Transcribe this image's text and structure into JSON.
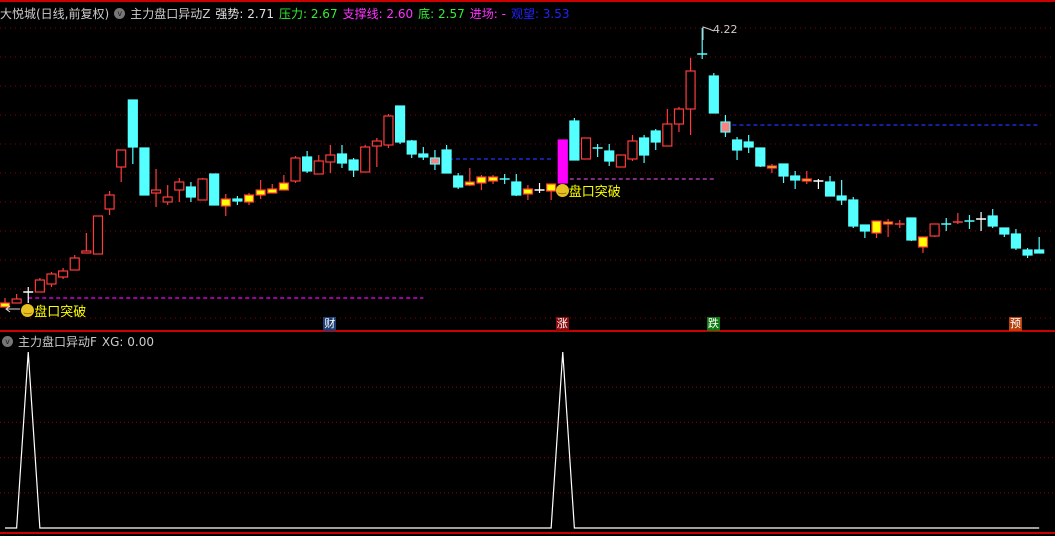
{
  "header": {
    "stock": "大悦城(日线,前复权)",
    "indicator": "主力盘口异动Z",
    "items": [
      {
        "label": "强势: 2.71",
        "color": "#e0e0e0"
      },
      {
        "label": "压力: 2.67",
        "color": "#33ee33"
      },
      {
        "label": "支撑线: 2.60",
        "color": "#ff33ff"
      },
      {
        "label": "底: 2.57",
        "color": "#33ee33"
      },
      {
        "label": "进场: -",
        "color": "#ff33ff"
      },
      {
        "label": "观望: 3.53",
        "color": "#2222ff"
      }
    ]
  },
  "subpanel": {
    "indicator": "主力盘口异动F",
    "value_label": "XG: 0.00"
  },
  "signals": [
    {
      "label": "盘口突破",
      "candle": 2
    },
    {
      "label": "盘口突破",
      "candle": 48
    }
  ],
  "high_label": "4.22",
  "markers": [
    {
      "label": "财",
      "candle": 28,
      "color": "#1d3f73"
    },
    {
      "label": "涨",
      "candle": 48,
      "color": "#8a0c0c"
    },
    {
      "label": "跌",
      "candle": 61,
      "color": "#0e7a12"
    },
    {
      "label": "预",
      "candle": 87,
      "color": "#b8400a"
    }
  ],
  "colors": {
    "up": "#ff3b3b",
    "down": "#54ffff",
    "yellow": "#ffff00",
    "magenta": "#ff00ff",
    "pink": "#ff8080",
    "doji": "#ffffff",
    "grid": "#8a0000",
    "border": "#cc0000"
  },
  "chart_data": [
    {
      "type": "candlestick",
      "title": "大悦城(日线,前复权)",
      "ylim": [
        1.4,
        4.3
      ],
      "grid": true,
      "style_codes": {
        "u": "up",
        "d": "down",
        "y": "yellow",
        "m": "magenta",
        "p": "pink",
        "w": "doji"
      },
      "candles": [
        [
          1.43,
          1.52,
          1.43,
          1.47,
          "y"
        ],
        [
          1.47,
          1.56,
          1.47,
          1.51,
          "u"
        ],
        [
          1.58,
          1.63,
          1.47,
          1.58,
          "w"
        ],
        [
          1.58,
          1.72,
          1.58,
          1.7,
          "u"
        ],
        [
          1.66,
          1.78,
          1.63,
          1.76,
          "u"
        ],
        [
          1.73,
          1.82,
          1.71,
          1.79,
          "u"
        ],
        [
          1.8,
          1.95,
          1.8,
          1.92,
          "u"
        ],
        [
          1.97,
          2.17,
          1.97,
          1.99,
          "u"
        ],
        [
          1.96,
          2.34,
          1.96,
          2.34,
          "u"
        ],
        [
          2.41,
          2.59,
          2.35,
          2.55,
          "u"
        ],
        [
          2.83,
          3.0,
          2.68,
          3.0,
          "u"
        ],
        [
          3.5,
          3.5,
          2.86,
          3.03,
          "d"
        ],
        [
          3.02,
          3.02,
          2.55,
          2.55,
          "d"
        ],
        [
          2.57,
          2.81,
          2.43,
          2.6,
          "u"
        ],
        [
          2.48,
          2.65,
          2.45,
          2.53,
          "u"
        ],
        [
          2.6,
          2.72,
          2.48,
          2.68,
          "u"
        ],
        [
          2.63,
          2.68,
          2.48,
          2.53,
          "d"
        ],
        [
          2.5,
          2.72,
          2.5,
          2.71,
          "u"
        ],
        [
          2.76,
          2.76,
          2.45,
          2.45,
          "d"
        ],
        [
          2.44,
          2.56,
          2.34,
          2.51,
          "y"
        ],
        [
          2.51,
          2.54,
          2.45,
          2.49,
          "d"
        ],
        [
          2.48,
          2.57,
          2.45,
          2.55,
          "y"
        ],
        [
          2.55,
          2.7,
          2.51,
          2.6,
          "y"
        ],
        [
          2.57,
          2.66,
          2.57,
          2.61,
          "y"
        ],
        [
          2.6,
          2.75,
          2.6,
          2.67,
          "y"
        ],
        [
          2.69,
          2.94,
          2.67,
          2.92,
          "u"
        ],
        [
          2.93,
          2.99,
          2.77,
          2.79,
          "d"
        ],
        [
          2.76,
          2.95,
          2.76,
          2.89,
          "u"
        ],
        [
          2.88,
          3.05,
          2.77,
          2.95,
          "u"
        ],
        [
          2.96,
          3.05,
          2.82,
          2.87,
          "d"
        ],
        [
          2.9,
          2.92,
          2.73,
          2.8,
          "d"
        ],
        [
          2.78,
          3.05,
          2.78,
          3.03,
          "u"
        ],
        [
          3.04,
          3.12,
          2.83,
          3.09,
          "u"
        ],
        [
          3.05,
          3.36,
          3.02,
          3.34,
          "u"
        ],
        [
          3.44,
          3.44,
          3.06,
          3.08,
          "d"
        ],
        [
          3.09,
          3.1,
          2.92,
          2.96,
          "d"
        ],
        [
          2.96,
          3.03,
          2.9,
          2.93,
          "d"
        ],
        [
          2.92,
          3.0,
          2.8,
          2.86,
          "p"
        ],
        [
          3.0,
          3.05,
          2.77,
          2.77,
          "d"
        ],
        [
          2.74,
          2.77,
          2.61,
          2.63,
          "d"
        ],
        [
          2.65,
          2.82,
          2.64,
          2.68,
          "y"
        ],
        [
          2.67,
          2.75,
          2.6,
          2.73,
          "y"
        ],
        [
          2.69,
          2.75,
          2.66,
          2.73,
          "y"
        ],
        [
          2.71,
          2.76,
          2.66,
          2.71,
          "d"
        ],
        [
          2.68,
          2.76,
          2.54,
          2.55,
          "d"
        ],
        [
          2.56,
          2.65,
          2.5,
          2.61,
          "y"
        ],
        [
          2.6,
          2.67,
          2.57,
          2.6,
          "w"
        ],
        [
          2.59,
          2.66,
          2.5,
          2.66,
          "y"
        ],
        [
          2.67,
          3.1,
          2.67,
          3.1,
          "m"
        ],
        [
          3.29,
          3.32,
          2.9,
          2.9,
          "d"
        ],
        [
          2.91,
          3.12,
          2.91,
          3.12,
          "u"
        ],
        [
          3.02,
          3.06,
          2.93,
          3.02,
          "d"
        ],
        [
          2.99,
          3.06,
          2.84,
          2.89,
          "d"
        ],
        [
          2.83,
          2.95,
          2.83,
          2.95,
          "u"
        ],
        [
          2.91,
          3.15,
          2.89,
          3.09,
          "u"
        ],
        [
          3.12,
          3.15,
          2.87,
          2.95,
          "d"
        ],
        [
          3.19,
          3.21,
          3.0,
          3.08,
          "d"
        ],
        [
          3.04,
          3.41,
          3.04,
          3.26,
          "u"
        ],
        [
          3.26,
          3.43,
          3.18,
          3.41,
          "u"
        ],
        [
          3.41,
          3.92,
          3.15,
          3.79,
          "u"
        ],
        [
          3.96,
          4.22,
          3.91,
          3.96,
          "d"
        ],
        [
          3.74,
          3.77,
          3.37,
          3.37,
          "d"
        ],
        [
          3.28,
          3.35,
          3.13,
          3.18,
          "p"
        ],
        [
          3.1,
          3.13,
          2.9,
          3.0,
          "d"
        ],
        [
          3.08,
          3.15,
          2.97,
          3.03,
          "d"
        ],
        [
          3.02,
          3.02,
          2.83,
          2.84,
          "d"
        ],
        [
          2.82,
          2.86,
          2.77,
          2.84,
          "y"
        ],
        [
          2.86,
          2.86,
          2.67,
          2.74,
          "d"
        ],
        [
          2.74,
          2.79,
          2.61,
          2.7,
          "d"
        ],
        [
          2.69,
          2.79,
          2.66,
          2.71,
          "y"
        ],
        [
          2.69,
          2.71,
          2.61,
          2.69,
          "w"
        ],
        [
          2.68,
          2.74,
          2.54,
          2.54,
          "d"
        ],
        [
          2.54,
          2.7,
          2.45,
          2.5,
          "d"
        ],
        [
          2.5,
          2.53,
          2.22,
          2.24,
          "d"
        ],
        [
          2.25,
          2.25,
          2.12,
          2.19,
          "d"
        ],
        [
          2.17,
          2.29,
          2.12,
          2.29,
          "y"
        ],
        [
          2.26,
          2.31,
          2.13,
          2.28,
          "y"
        ],
        [
          2.25,
          2.3,
          2.22,
          2.26,
          "y"
        ],
        [
          2.32,
          2.32,
          2.09,
          2.1,
          "d"
        ],
        [
          2.03,
          2.13,
          1.97,
          2.13,
          "y"
        ],
        [
          2.14,
          2.26,
          2.13,
          2.26,
          "u"
        ],
        [
          2.26,
          2.32,
          2.19,
          2.26,
          "d"
        ],
        [
          2.28,
          2.37,
          2.26,
          2.28,
          "u"
        ],
        [
          2.29,
          2.35,
          2.21,
          2.29,
          "d"
        ],
        [
          2.31,
          2.38,
          2.19,
          2.31,
          "w"
        ],
        [
          2.34,
          2.41,
          2.22,
          2.24,
          "d"
        ],
        [
          2.22,
          2.22,
          2.13,
          2.16,
          "d"
        ],
        [
          2.16,
          2.21,
          2.0,
          2.02,
          "d"
        ],
        [
          2.0,
          2.02,
          1.92,
          1.95,
          "d"
        ],
        [
          2.0,
          2.13,
          1.97,
          1.97,
          "d"
        ]
      ],
      "levels": [
        {
          "value": 1.52,
          "from": 2,
          "to": 36,
          "color": "#ff00ff"
        },
        {
          "value": 2.91,
          "from": 37,
          "to": 47,
          "color": "#2233ff"
        },
        {
          "value": 2.71,
          "from": 48,
          "to": 61,
          "color": "#cc44cc"
        },
        {
          "value": 3.25,
          "from": 62,
          "to": 89,
          "color": "#2233ff"
        }
      ]
    },
    {
      "type": "line",
      "title": "主力盘口异动F",
      "series": [
        {
          "name": "XG",
          "peaks_at": [
            2,
            48
          ],
          "count": 90
        }
      ],
      "ylim": [
        0,
        1
      ],
      "grid": true
    }
  ]
}
